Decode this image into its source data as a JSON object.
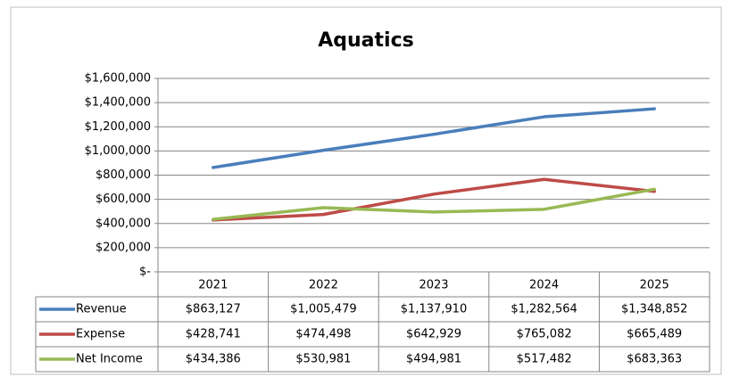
{
  "chart_data": {
    "type": "line",
    "title": "Aquatics",
    "categories": [
      "2021",
      "2022",
      "2023",
      "2024",
      "2025"
    ],
    "series": [
      {
        "name": "Revenue",
        "color": "#4a7ebb",
        "values": [
          863127,
          1005479,
          1137910,
          1282564,
          1348852
        ],
        "value_labels": [
          "$863,127",
          "$1,005,479",
          "$1,137,910",
          "$1,282,564",
          "$1,348,852"
        ]
      },
      {
        "name": "Expense",
        "color": "#be4b48",
        "values": [
          428741,
          474498,
          642929,
          765082,
          665489
        ],
        "value_labels": [
          "$428,741",
          "$474,498",
          "$642,929",
          "$765,082",
          "$665,489"
        ]
      },
      {
        "name": "Net Income",
        "color": "#98b954",
        "values": [
          434386,
          530981,
          494981,
          517482,
          683363
        ],
        "value_labels": [
          "$434,386",
          "$530,981",
          "$494,981",
          "$517,482",
          "$683,363"
        ]
      }
    ],
    "ylim": [
      0,
      1600000
    ],
    "yticks": [
      {
        "value": 0,
        "label": "$-"
      },
      {
        "value": 200000,
        "label": "$200,000"
      },
      {
        "value": 400000,
        "label": "$400,000"
      },
      {
        "value": 600000,
        "label": "$600,000"
      },
      {
        "value": 800000,
        "label": "$800,000"
      },
      {
        "value": 1000000,
        "label": "$1,000,000"
      },
      {
        "value": 1200000,
        "label": "$1,200,000"
      },
      {
        "value": 1400000,
        "label": "$1,400,000"
      },
      {
        "value": 1600000,
        "label": "$1,600,000"
      }
    ],
    "grid": true
  }
}
